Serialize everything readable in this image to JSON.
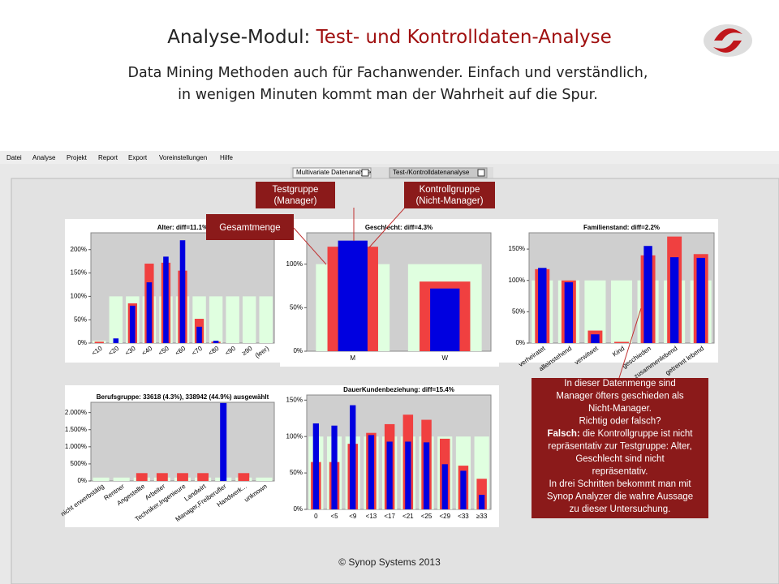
{
  "header": {
    "title_a": "Analyse-Modul: ",
    "title_b": "Test- und Kontrolldaten-Analyse",
    "subtitle": [
      "Data Mining Methoden auch für Fachanwender. Einfach und verständlich,",
      "in wenigen Minuten kommt man der Wahrheit auf die Spur."
    ]
  },
  "menu": [
    "Datei",
    "Analyse",
    "Projekt",
    "Report",
    "Export",
    "Voreinstellungen",
    "Hilfe"
  ],
  "tabs": [
    "Multivariate Datenanalyse",
    "Test-/Kontrolldatenanalyse"
  ],
  "callouts": {
    "test": [
      "Testgruppe",
      "(Manager)"
    ],
    "control": [
      "Kontrollgruppe",
      "(Nicht-Manager)"
    ],
    "total": "Gesamtmenge"
  },
  "note": {
    "intro": [
      "In dieser Datenmenge sind",
      "Manager öfters geschieden als",
      "Nicht-Manager.",
      "Richtig oder falsch?"
    ],
    "falsch_label": "Falsch:",
    "falsch_text": " die Kontrollgruppe ist nicht",
    "rest": [
      "repräsentativ zur Testgruppe: Alter,",
      "Geschlecht sind nicht",
      "repräsentativ.",
      "In drei Schritten bekommt man mit",
      "Synop Analyzer die wahre Aussage",
      "zu dieser Untersuchung."
    ]
  },
  "footer": "© Synop Systems 2013",
  "chart_data": [
    {
      "type": "bar",
      "title": "Alter: diff=11.1%",
      "categories": [
        "<10",
        "<20",
        "<30",
        "<40",
        "<50",
        "<60",
        "<70",
        "<80",
        "<90",
        "≥90",
        "(leer)"
      ],
      "series": [
        {
          "color": "#e0ffe0",
          "values": [
            5,
            100,
            100,
            100,
            100,
            100,
            100,
            100,
            100,
            100,
            100
          ]
        },
        {
          "color": "#f04040",
          "values": [
            3,
            0,
            85,
            170,
            172,
            155,
            52,
            3,
            0,
            0,
            0
          ]
        },
        {
          "color": "#0000e0",
          "values": [
            0,
            10,
            80,
            130,
            185,
            220,
            35,
            5,
            0,
            0,
            0
          ]
        }
      ],
      "ylim": [
        0,
        236
      ],
      "yticks": [
        {
          "value": 0,
          "label": "0%"
        },
        {
          "value": 50,
          "label": "50%"
        },
        {
          "value": 100,
          "label": "100%"
        },
        {
          "value": 150,
          "label": "150%"
        },
        {
          "value": 200,
          "label": "200%"
        }
      ]
    },
    {
      "type": "bar",
      "title": "Geschlecht: diff=4.3%",
      "categories": [
        "M",
        "W"
      ],
      "series": [
        {
          "color": "#e0ffe0",
          "values": [
            100,
            100
          ]
        },
        {
          "color": "#f04040",
          "values": [
            120,
            80
          ]
        },
        {
          "color": "#0000e0",
          "values": [
            127,
            72
          ]
        }
      ],
      "ylim": [
        0,
        136
      ],
      "yticks": [
        {
          "value": 0,
          "label": "0%"
        },
        {
          "value": 50,
          "label": "50%"
        },
        {
          "value": 100,
          "label": "100%"
        }
      ]
    },
    {
      "type": "bar",
      "title": "Familienstand: diff=2.2%",
      "categories": [
        "verheiratet",
        "alleinstehend",
        "verwitwet",
        "Kind",
        "geschieden",
        "zusammenlebend",
        "getrennt lebend"
      ],
      "series": [
        {
          "color": "#e0ffe0",
          "values": [
            100,
            100,
            100,
            100,
            100,
            100,
            100
          ]
        },
        {
          "color": "#f04040",
          "values": [
            118,
            100,
            20,
            2,
            140,
            170,
            142
          ]
        },
        {
          "color": "#0000e0",
          "values": [
            120,
            97,
            14,
            0,
            155,
            137,
            136
          ]
        }
      ],
      "ylim": [
        0,
        176
      ],
      "yticks": [
        {
          "value": 0,
          "label": "0%"
        },
        {
          "value": 50,
          "label": "50%"
        },
        {
          "value": 100,
          "label": "100%"
        },
        {
          "value": 150,
          "label": "150%"
        }
      ]
    },
    {
      "type": "bar",
      "title": "Berufsgruppe: 33618 (4.3%), 338942 (44.9%)  ausgewählt",
      "title_color": "#0000cc",
      "categories": [
        "nicht erwerbstätig",
        "Rentner",
        "Angestellte",
        "Arbeiter",
        "Techniker,Ingenieure",
        "Landwirt",
        "Manager,Freiberufler",
        "Handwerk...",
        "unknown"
      ],
      "series": [
        {
          "color": "#e0ffe0",
          "values": [
            100,
            100,
            100,
            100,
            100,
            100,
            100,
            100,
            100
          ]
        },
        {
          "color": "#f04040",
          "values": [
            0,
            0,
            230,
            230,
            230,
            230,
            0,
            230,
            0
          ]
        },
        {
          "color": "#0000e0",
          "values": [
            0,
            0,
            0,
            0,
            0,
            0,
            2280,
            0,
            0
          ]
        }
      ],
      "ylim": [
        0,
        2300
      ],
      "yticks": [
        {
          "value": 0,
          "label": "0%"
        },
        {
          "value": 500,
          "label": "500%"
        },
        {
          "value": 1000,
          "label": "1.000%"
        },
        {
          "value": 1500,
          "label": "1.500%"
        },
        {
          "value": 2000,
          "label": "2.000%"
        }
      ]
    },
    {
      "type": "bar",
      "title": "DauerKundenbeziehung: diff=15.4%",
      "categories": [
        "0",
        "<5",
        "<9",
        "<13",
        "<17",
        "<21",
        "<25",
        "<29",
        "<33",
        "≥33"
      ],
      "series": [
        {
          "color": "#e0ffe0",
          "values": [
            100,
            100,
            100,
            100,
            100,
            100,
            100,
            100,
            100,
            100
          ]
        },
        {
          "color": "#f04040",
          "values": [
            65,
            65,
            90,
            105,
            117,
            130,
            123,
            97,
            60,
            42
          ]
        },
        {
          "color": "#0000e0",
          "values": [
            118,
            115,
            143,
            102,
            93,
            93,
            92,
            62,
            53,
            20
          ]
        }
      ],
      "ylim": [
        0,
        157
      ],
      "yticks": [
        {
          "value": 0,
          "label": "0%"
        },
        {
          "value": 50,
          "label": "50%"
        },
        {
          "value": 100,
          "label": "100%"
        },
        {
          "value": 150,
          "label": "150%"
        }
      ]
    }
  ]
}
